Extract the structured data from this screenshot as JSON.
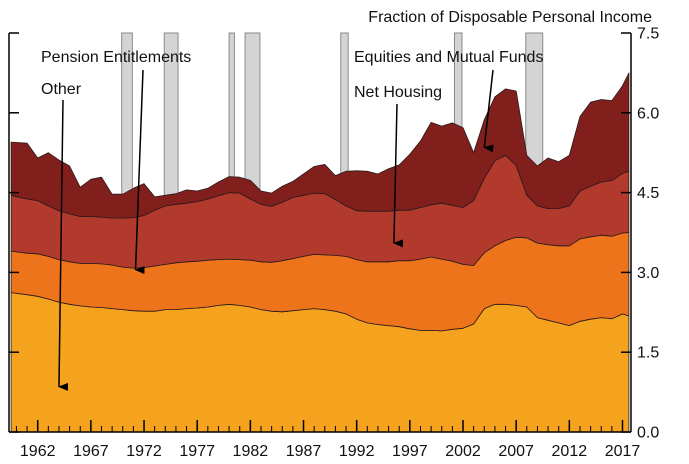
{
  "chart_data": {
    "type": "area",
    "stacked": true,
    "title": "",
    "right_axis_title": "Fraction of Disposable Personal Income",
    "xlabel": "",
    "ylabel": "",
    "xlim": [
      1959.3,
      2017.8
    ],
    "ylim": [
      0,
      7.5
    ],
    "x_tick_labels": [
      "1962",
      "1967",
      "1972",
      "1977",
      "1982",
      "1987",
      "1992",
      "1997",
      "2002",
      "2007",
      "2012",
      "2017"
    ],
    "y_tick_labels": [
      "0.0",
      "1.5",
      "3.0",
      "4.5",
      "6.0",
      "7.5"
    ],
    "grid": false,
    "recessions": [
      [
        1969.9,
        1970.9
      ],
      [
        1973.9,
        1975.2
      ],
      [
        1980.0,
        1980.5
      ],
      [
        1981.5,
        1982.9
      ],
      [
        1990.5,
        1991.2
      ],
      [
        2001.2,
        2001.9
      ],
      [
        2007.9,
        2009.5
      ]
    ],
    "x": [
      1959.5,
      1961,
      1962,
      1963,
      1964,
      1965,
      1966,
      1967,
      1968,
      1969,
      1970,
      1971,
      1972,
      1973,
      1974,
      1975,
      1976,
      1977,
      1978,
      1979,
      1980,
      1981,
      1982,
      1983,
      1984,
      1985,
      1986,
      1987,
      1988,
      1989,
      1990,
      1991,
      1992,
      1993,
      1994,
      1995,
      1996,
      1997,
      1998,
      1999,
      2000,
      2001,
      2002,
      2003,
      2004,
      2005,
      2006,
      2007,
      2008,
      2009,
      2010,
      2011,
      2012,
      2013,
      2014,
      2015,
      2016,
      2017,
      2017.6
    ],
    "series": [
      {
        "name": "Other",
        "color": "#f5a21e",
        "values": [
          2.62,
          2.58,
          2.55,
          2.5,
          2.44,
          2.4,
          2.37,
          2.35,
          2.34,
          2.32,
          2.3,
          2.28,
          2.27,
          2.27,
          2.3,
          2.3,
          2.32,
          2.33,
          2.35,
          2.38,
          2.4,
          2.38,
          2.35,
          2.3,
          2.27,
          2.26,
          2.28,
          2.3,
          2.32,
          2.3,
          2.27,
          2.22,
          2.12,
          2.05,
          2.02,
          2.0,
          1.98,
          1.94,
          1.91,
          1.91,
          1.9,
          1.93,
          1.95,
          2.03,
          2.32,
          2.4,
          2.4,
          2.38,
          2.35,
          2.15,
          2.1,
          2.05,
          2.0,
          2.08,
          2.12,
          2.15,
          2.13,
          2.22,
          2.18
        ]
      },
      {
        "name": "Pension Entitlements",
        "color": "#ee741b",
        "values": [
          0.78,
          0.78,
          0.8,
          0.8,
          0.8,
          0.8,
          0.8,
          0.82,
          0.82,
          0.82,
          0.8,
          0.8,
          0.82,
          0.85,
          0.85,
          0.88,
          0.88,
          0.88,
          0.88,
          0.86,
          0.85,
          0.86,
          0.88,
          0.9,
          0.92,
          0.96,
          0.98,
          1.0,
          1.02,
          1.03,
          1.05,
          1.08,
          1.12,
          1.15,
          1.18,
          1.2,
          1.24,
          1.28,
          1.34,
          1.38,
          1.35,
          1.28,
          1.2,
          1.1,
          1.05,
          1.1,
          1.2,
          1.28,
          1.3,
          1.4,
          1.42,
          1.45,
          1.5,
          1.55,
          1.55,
          1.55,
          1.55,
          1.52,
          1.57
        ]
      },
      {
        "name": "Net Housing",
        "color": "#b23a2c",
        "values": [
          1.05,
          1.02,
          1.0,
          0.95,
          0.92,
          0.9,
          0.88,
          0.88,
          0.88,
          0.88,
          0.92,
          0.95,
          0.98,
          1.05,
          1.1,
          1.1,
          1.1,
          1.12,
          1.15,
          1.2,
          1.25,
          1.25,
          1.15,
          1.08,
          1.05,
          1.1,
          1.15,
          1.15,
          1.15,
          1.15,
          1.05,
          0.95,
          0.92,
          0.95,
          0.95,
          0.95,
          0.95,
          0.95,
          0.97,
          0.98,
          1.05,
          1.05,
          1.07,
          1.22,
          1.4,
          1.6,
          1.6,
          1.35,
          0.8,
          0.7,
          0.68,
          0.7,
          0.75,
          0.9,
          0.95,
          1.0,
          1.05,
          1.12,
          1.15
        ]
      },
      {
        "name": "Equities and Mutual Funds",
        "color": "#811f1d",
        "values": [
          1.0,
          1.05,
          0.8,
          1.0,
          0.95,
          0.9,
          0.55,
          0.7,
          0.75,
          0.45,
          0.45,
          0.55,
          0.6,
          0.25,
          0.2,
          0.2,
          0.25,
          0.2,
          0.2,
          0.26,
          0.3,
          0.3,
          0.35,
          0.25,
          0.25,
          0.3,
          0.3,
          0.4,
          0.5,
          0.55,
          0.45,
          0.65,
          0.75,
          0.75,
          0.7,
          0.8,
          0.85,
          1.05,
          1.25,
          1.55,
          1.45,
          1.55,
          1.5,
          0.9,
          1.1,
          1.2,
          1.25,
          1.4,
          0.75,
          0.75,
          0.95,
          0.88,
          0.95,
          1.4,
          1.58,
          1.55,
          1.5,
          1.65,
          1.85
        ]
      }
    ],
    "annotations": [
      {
        "text": "Pension Entitlements",
        "arrow_to": [
          1971.2,
          3.05
        ]
      },
      {
        "text": "Other",
        "arrow_to": [
          1964.0,
          0.85
        ]
      },
      {
        "text": "Equities and Mutual Funds",
        "arrow_to": [
          2004.0,
          5.35
        ]
      },
      {
        "text": "Net Housing",
        "arrow_to": [
          1995.5,
          3.55
        ]
      }
    ]
  }
}
